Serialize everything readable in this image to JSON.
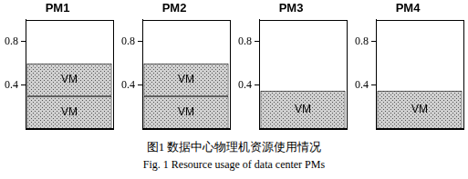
{
  "chart_data": [
    {
      "type": "bar",
      "stacked": true,
      "title": "PM1",
      "categories": [
        null
      ],
      "color": "#d0d0d0",
      "ylim": [
        0,
        1
      ],
      "yticks": [
        0.4,
        0.8
      ],
      "grid": false,
      "series": [
        {
          "name": "VM",
          "values": [
            0.3
          ]
        },
        {
          "name": "VM",
          "values": [
            0.3
          ]
        }
      ]
    },
    {
      "type": "bar",
      "stacked": true,
      "title": "PM2",
      "categories": [
        null
      ],
      "color": "#d0d0d0",
      "ylim": [
        0,
        1
      ],
      "yticks": [
        0.4,
        0.8
      ],
      "grid": false,
      "series": [
        {
          "name": "VM",
          "values": [
            0.3
          ]
        },
        {
          "name": "VM",
          "values": [
            0.3
          ]
        }
      ]
    },
    {
      "type": "bar",
      "stacked": true,
      "title": "PM3",
      "categories": [
        null
      ],
      "color": "#d0d0d0",
      "ylim": [
        0,
        1
      ],
      "yticks": [
        0.4,
        0.8
      ],
      "grid": false,
      "series": [
        {
          "name": "VM",
          "values": [
            0.35
          ]
        }
      ]
    },
    {
      "type": "bar",
      "stacked": true,
      "title": "PM4",
      "categories": [
        null
      ],
      "color": "#d0d0d0",
      "ylim": [
        0,
        1
      ],
      "yticks": [
        0.4,
        0.8
      ],
      "grid": false,
      "series": [
        {
          "name": "VM",
          "values": [
            0.35
          ]
        }
      ]
    }
  ],
  "caption": [
    "图1 数据中心物理机资源使用情况",
    "Fig. 1 Resource usage of data center PMs"
  ]
}
